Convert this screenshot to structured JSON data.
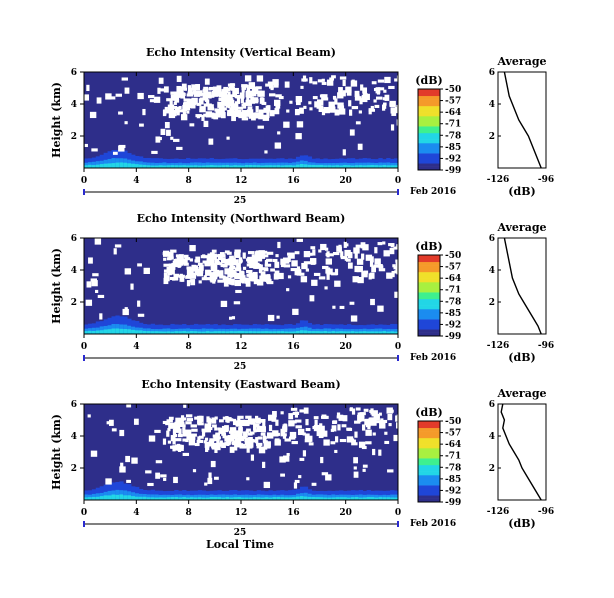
{
  "figure": {
    "xlabel": "Local Time",
    "date_label": "Feb 2016",
    "day_label": "25",
    "colorbar_unit": "(dB)",
    "profile_title": "Average",
    "profile_xlabel": "(dB)"
  },
  "colorscale": [
    "#2e2e8a",
    "#1f46d8",
    "#1b8cf0",
    "#22d6e6",
    "#3ef08f",
    "#a8f040",
    "#f0e02a",
    "#f59a2a",
    "#e23b2a"
  ],
  "chart_data": [
    {
      "type": "heatmap",
      "title": "Echo Intensity (Vertical Beam)",
      "ylabel": "Height (km)",
      "xlabel": "Local Time",
      "x_ticks": [
        "0",
        "4",
        "8",
        "12",
        "16",
        "20",
        "0"
      ],
      "y_ticks": [
        "6",
        "4",
        "2"
      ],
      "xlim": [
        0,
        24
      ],
      "ylim": [
        0,
        6
      ],
      "colorbar_ticks": [
        "-50",
        "-57",
        "-64",
        "-71",
        "-78",
        "-85",
        "-92",
        "-99"
      ],
      "zlim": [
        -99,
        -50
      ],
      "seed": 11,
      "profile": {
        "title": "Average",
        "x_ticks": [
          "-126",
          "-96"
        ],
        "y_ticks": [
          "6",
          "4",
          "2"
        ],
        "xlim": [
          -126,
          -96
        ],
        "ylim": [
          0,
          6
        ],
        "height": [
          0,
          0.5,
          1,
          1.5,
          2,
          2.5,
          3,
          3.5,
          4,
          4.5,
          5,
          5.5,
          6
        ],
        "value": [
          -99,
          -101,
          -103,
          -105,
          -107,
          -110,
          -113,
          -115,
          -117,
          -119,
          -120,
          -121,
          -122
        ]
      }
    },
    {
      "type": "heatmap",
      "title": "Echo Intensity (Northward Beam)",
      "ylabel": "Height (km)",
      "xlabel": "Local Time",
      "x_ticks": [
        "0",
        "4",
        "8",
        "12",
        "16",
        "20",
        "0"
      ],
      "y_ticks": [
        "6",
        "4",
        "2"
      ],
      "xlim": [
        0,
        24
      ],
      "ylim": [
        0,
        6
      ],
      "colorbar_ticks": [
        "-50",
        "-57",
        "-64",
        "-71",
        "-78",
        "-85",
        "-92",
        "-99"
      ],
      "zlim": [
        -99,
        -50
      ],
      "seed": 23,
      "profile": {
        "title": "Average",
        "x_ticks": [
          "-126",
          "-96"
        ],
        "y_ticks": [
          "6",
          "4",
          "2"
        ],
        "xlim": [
          -126,
          -96
        ],
        "ylim": [
          0,
          6
        ],
        "height": [
          0,
          0.5,
          1,
          1.5,
          2,
          2.5,
          3,
          3.5,
          4,
          4.5,
          5,
          5.5,
          6
        ],
        "value": [
          -99,
          -101,
          -104,
          -107,
          -110,
          -113,
          -115,
          -117,
          -118,
          -119,
          -120,
          -121,
          -122
        ]
      }
    },
    {
      "type": "heatmap",
      "title": "Echo Intensity (Eastward Beam)",
      "ylabel": "Height (km)",
      "xlabel": "Local Time",
      "x_ticks": [
        "0",
        "4",
        "8",
        "12",
        "16",
        "20",
        "0"
      ],
      "y_ticks": [
        "6",
        "4",
        "2"
      ],
      "xlim": [
        0,
        24
      ],
      "ylim": [
        0,
        6
      ],
      "colorbar_ticks": [
        "-50",
        "-57",
        "-64",
        "-71",
        "-78",
        "-85",
        "-92",
        "-99"
      ],
      "zlim": [
        -99,
        -50
      ],
      "seed": 37,
      "profile": {
        "title": "Average",
        "x_ticks": [
          "-126",
          "-96"
        ],
        "y_ticks": [
          "6",
          "4",
          "2"
        ],
        "xlim": [
          -126,
          -96
        ],
        "ylim": [
          0,
          6
        ],
        "height": [
          0,
          0.5,
          1,
          1.5,
          2,
          2.5,
          3,
          3.5,
          4,
          4.5,
          5,
          5.5,
          6
        ],
        "value": [
          -99,
          -102,
          -105,
          -108,
          -111,
          -113,
          -116,
          -119,
          -121,
          -123,
          -122,
          -124,
          -123
        ]
      }
    }
  ]
}
